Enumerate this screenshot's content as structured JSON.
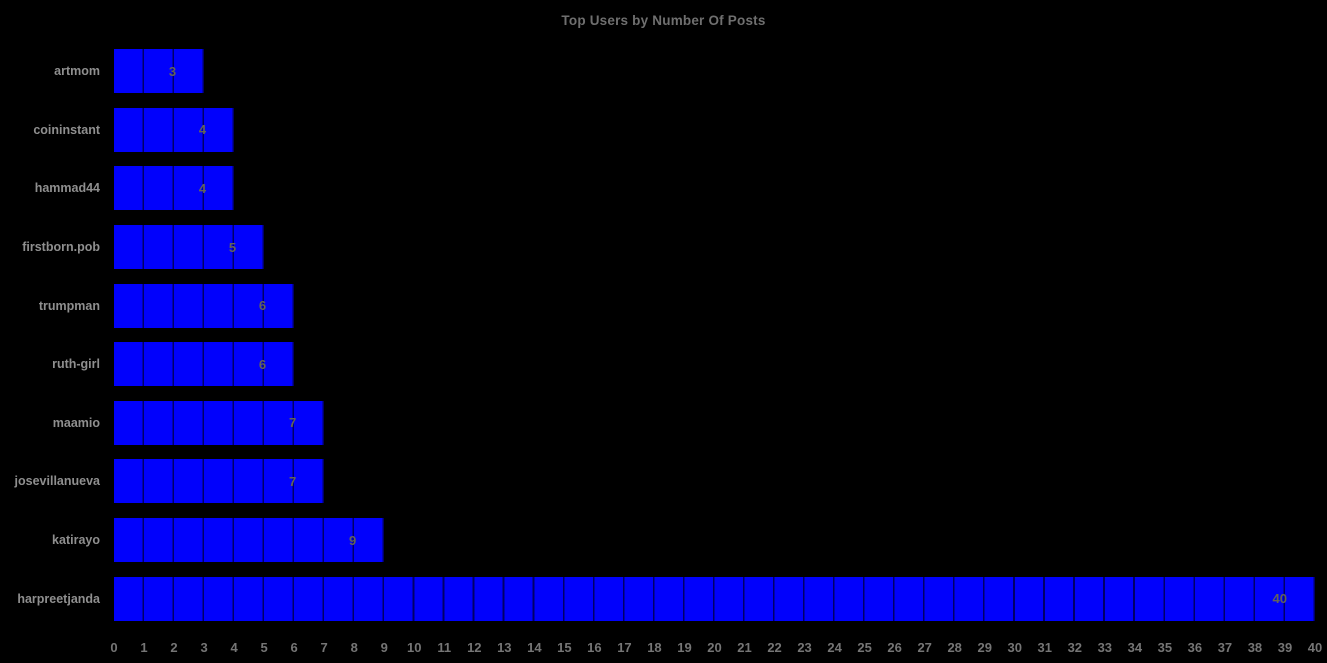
{
  "title": "Top Users by Number Of Posts",
  "colors": {
    "background": "#000000",
    "bar": "#0101fc",
    "bar_grid_line": "#000019",
    "title_text": "#6f6f6f",
    "axis_tick_text": "#757575",
    "category_label_text": "#8f8f8f",
    "value_label_text": "#63635a"
  },
  "chart_data": {
    "type": "bar",
    "orientation": "horizontal",
    "title": "Top Users by Number Of Posts",
    "categories": [
      "artmom",
      "coininstant",
      "hammad44",
      "firstborn.pob",
      "trumpman",
      "ruth-girl",
      "maamio",
      "josevillanueva",
      "katirayo",
      "harpreetjanda"
    ],
    "values": [
      3,
      4,
      4,
      5,
      6,
      6,
      7,
      7,
      9,
      40
    ],
    "xlabel": "",
    "ylabel": "",
    "xlim": [
      0,
      40
    ],
    "x_ticks": [
      0,
      1,
      2,
      3,
      4,
      5,
      6,
      7,
      8,
      9,
      10,
      11,
      12,
      13,
      14,
      15,
      16,
      17,
      18,
      19,
      20,
      21,
      22,
      23,
      24,
      25,
      26,
      27,
      28,
      29,
      30,
      31,
      32,
      33,
      34,
      35,
      36,
      37,
      38,
      39,
      40
    ],
    "grid": true,
    "legend": false,
    "value_labels": "inside-end"
  }
}
